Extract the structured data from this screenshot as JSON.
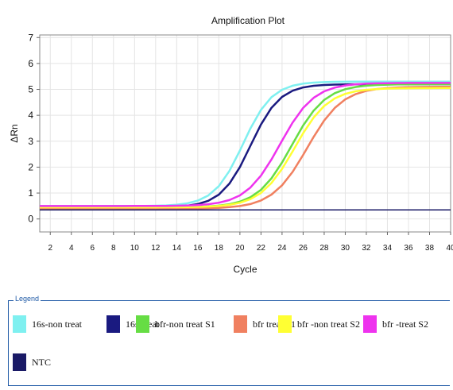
{
  "chart_data": {
    "type": "line",
    "title": "Amplification Plot",
    "xlabel": "Cycle",
    "ylabel": "ΔRn",
    "xlim": [
      1,
      40
    ],
    "ylim": [
      -0.5,
      7.1
    ],
    "xticks": [
      2,
      4,
      6,
      8,
      10,
      12,
      14,
      16,
      18,
      20,
      22,
      24,
      26,
      28,
      30,
      32,
      34,
      36,
      38,
      40
    ],
    "yticks": [
      0,
      1,
      2,
      3,
      4,
      5,
      6,
      7
    ],
    "grid": true,
    "legend_position": "bottom",
    "legend_title": "Legend",
    "series": [
      {
        "name": "16s-non treat",
        "color": "#7ff0f0",
        "baseline": 0.5,
        "plateau": 5.3,
        "midpoint": 20.3,
        "slope": 0.72,
        "values": []
      },
      {
        "name": "16s-treat",
        "color": "#1a1a80",
        "baseline": 0.45,
        "plateau": 5.2,
        "midpoint": 21.0,
        "slope": 0.72,
        "values": []
      },
      {
        "name": "bfr-non treat S1",
        "color": "#66dd44",
        "baseline": 0.45,
        "plateau": 5.2,
        "midpoint": 24.9,
        "slope": 0.62,
        "values": []
      },
      {
        "name": "bfr treat S1",
        "color": "#f08060",
        "baseline": 0.4,
        "plateau": 5.1,
        "midpoint": 26.4,
        "slope": 0.6,
        "values": []
      },
      {
        "name": "bfr -non treat S2",
        "color": "#ffff33",
        "baseline": 0.45,
        "plateau": 5.05,
        "midpoint": 25.2,
        "slope": 0.62,
        "values": []
      },
      {
        "name": "bfr -treat  S2",
        "color": "#ee33ee",
        "baseline": 0.5,
        "plateau": 5.25,
        "midpoint": 23.8,
        "slope": 0.62,
        "values": []
      },
      {
        "name": "NTC",
        "color": "#1a1a66",
        "baseline": 0.35,
        "plateau": 0.35,
        "midpoint": 0,
        "slope": 0,
        "values": []
      }
    ]
  }
}
